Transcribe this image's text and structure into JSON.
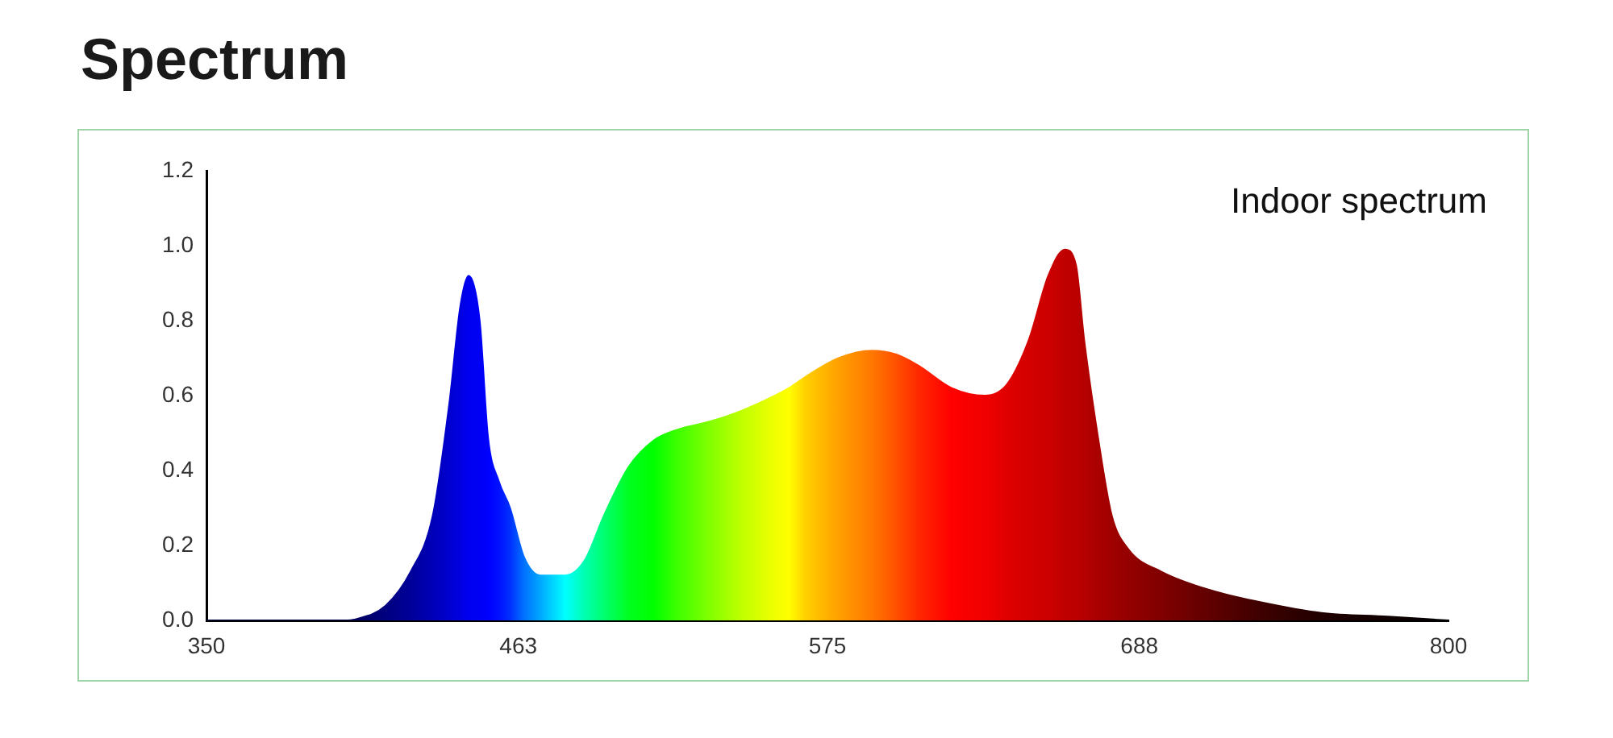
{
  "chart_data": {
    "type": "area",
    "title": "Spectrum",
    "annotations": [
      "Indoor spectrum"
    ],
    "x": [
      350,
      380,
      400,
      404,
      415,
      424,
      432,
      438,
      442,
      445,
      449,
      452,
      456,
      460,
      465,
      471,
      480,
      487,
      494,
      503,
      512,
      521,
      532,
      544,
      556,
      561,
      567,
      579,
      591,
      600,
      608,
      620,
      632,
      640,
      648,
      655,
      661,
      665,
      668,
      673,
      678,
      684,
      696,
      714,
      731,
      754,
      778,
      800
    ],
    "values": [
      0,
      0,
      0,
      0.003,
      0.04,
      0.13,
      0.28,
      0.58,
      0.84,
      0.92,
      0.8,
      0.49,
      0.37,
      0.3,
      0.17,
      0.12,
      0.12,
      0.16,
      0.28,
      0.41,
      0.48,
      0.51,
      0.53,
      0.56,
      0.6,
      0.62,
      0.65,
      0.7,
      0.72,
      0.71,
      0.68,
      0.62,
      0.6,
      0.63,
      0.75,
      0.92,
      0.99,
      0.95,
      0.75,
      0.49,
      0.28,
      0.19,
      0.13,
      0.08,
      0.05,
      0.02,
      0.01,
      0
    ],
    "colors": [
      "#000040",
      "#000040",
      "#000050",
      "#000060",
      "#000080",
      "#00009a",
      "#0000b8",
      "#0000d0",
      "#0000e0",
      "#0000f0",
      "#0000f5",
      "#0000ff",
      "#0010ff",
      "#0030ff",
      "#0070ff",
      "#00a8ff",
      "#00ffff",
      "#00ffb0",
      "#00ff70",
      "#00ff20",
      "#00ff00",
      "#40ff00",
      "#80ff00",
      "#c0ff00",
      "#f0ff00",
      "#ffff00",
      "#ffd000",
      "#ffa000",
      "#ff7800",
      "#ff5000",
      "#ff2800",
      "#ff0000",
      "#f00000",
      "#e00000",
      "#d40000",
      "#cc0000",
      "#c00000",
      "#bb0000",
      "#b50000",
      "#aa0000",
      "#a00000",
      "#940000",
      "#800000",
      "#600000",
      "#400000",
      "#200000",
      "#100000",
      "#000000"
    ],
    "xlim": [
      350,
      800
    ],
    "xticks": [
      350,
      463,
      575,
      688,
      800
    ],
    "ylim": [
      0,
      1.2
    ],
    "yticks": [
      {
        "value": 0,
        "label": "0.0"
      },
      0.2,
      0.4,
      0.6,
      0.8,
      {
        "value": 1,
        "label": "1.0"
      },
      1.2
    ]
  }
}
